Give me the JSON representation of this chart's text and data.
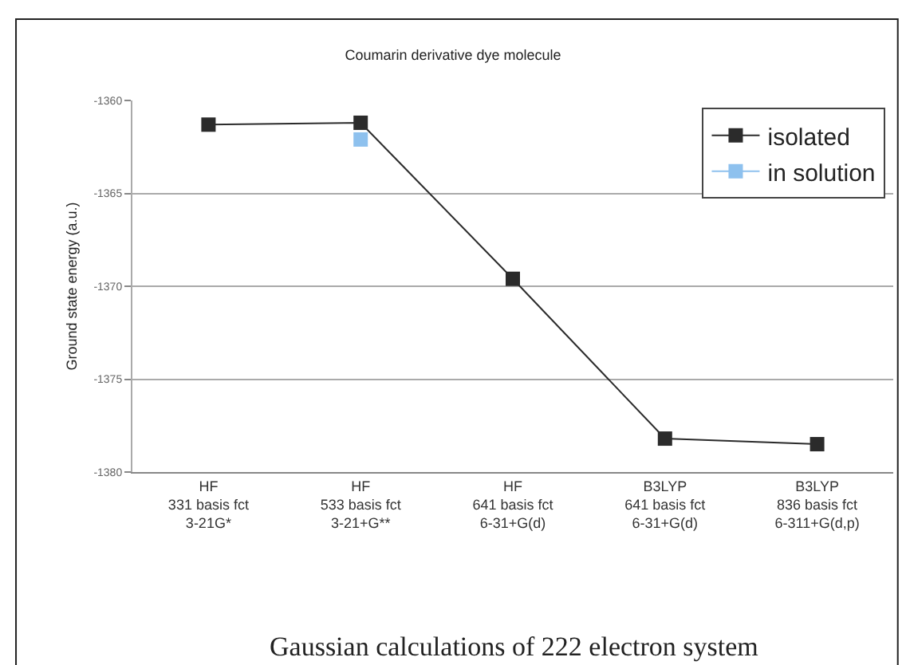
{
  "chart_data": {
    "type": "line",
    "title": "Coumarin derivative dye molecule",
    "ylabel": "Ground state energy (a.u.)",
    "categories": [
      "HF\n331 basis fct\n3-21G*",
      "HF\n533 basis fct\n3-21+G**",
      "HF\n641 basis fct\n6-31+G(d)",
      "B3LYP\n641 basis fct\n6-31+G(d)",
      "B3LYP\n836 basis fct\n6-311+G(d,p)"
    ],
    "series": [
      {
        "name": "isolated",
        "color": "#2b2b2b",
        "values": [
          -1361.3,
          -1361.2,
          -1369.6,
          -1378.2,
          -1378.5
        ]
      },
      {
        "name": "in solution",
        "color": "#8ec1ee",
        "values": [
          null,
          -1362.1,
          null,
          null,
          null
        ]
      }
    ],
    "ylim": [
      -1380,
      -1360
    ],
    "yticks": [
      -1380,
      -1375,
      -1370,
      -1365,
      -1360
    ],
    "grid": "y",
    "marker": "square",
    "legend": "top right",
    "annotations": [
      "Gaussian calculations of 222 electron system"
    ]
  }
}
